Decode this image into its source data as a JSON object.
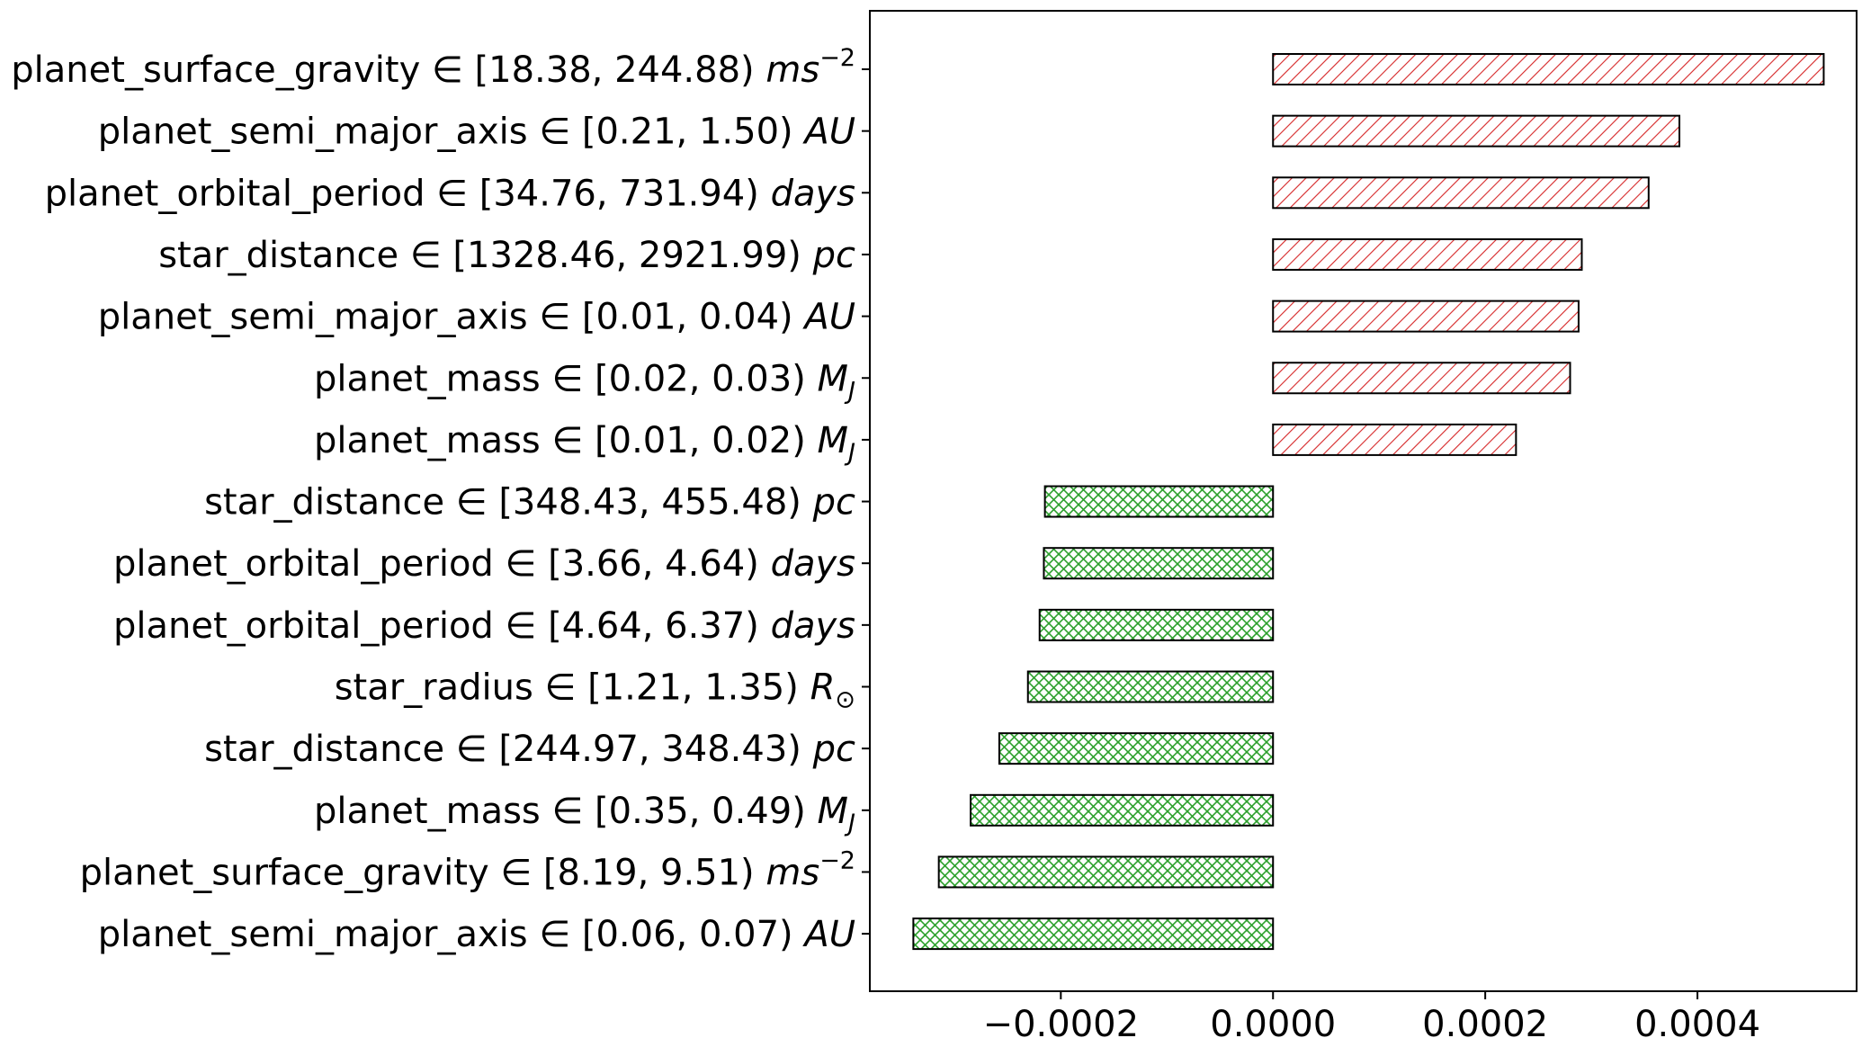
{
  "chart_data": {
    "type": "bar",
    "orientation": "horizontal",
    "title": "",
    "xlabel": "",
    "ylabel": "",
    "xlim": [
      -0.00038,
      0.00055
    ],
    "grid": false,
    "x_ticks": [
      {
        "value": -0.0002,
        "label": "−0.0002"
      },
      {
        "value": 0.0,
        "label": "0.0000"
      },
      {
        "value": 0.0002,
        "label": "0.0002"
      },
      {
        "value": 0.0004,
        "label": "0.0004"
      }
    ],
    "colors": {
      "positive": "#d62728",
      "negative": "#2ca02c"
    },
    "bars": [
      {
        "feature": "planet_surface_gravity",
        "range": "[18.38, 244.88)",
        "unit_base": "ms",
        "unit_sup": "−2",
        "unit_sub": "",
        "value": 0.000519
      },
      {
        "feature": "planet_semi_major_axis",
        "range": "[0.21, 1.50)",
        "unit_base": "AU",
        "unit_sup": "",
        "unit_sub": "",
        "value": 0.000383
      },
      {
        "feature": "planet_orbital_period",
        "range": "[34.76, 731.94)",
        "unit_base": "days",
        "unit_sup": "",
        "unit_sub": "",
        "value": 0.000354
      },
      {
        "feature": "star_distance",
        "range": "[1328.46, 2921.99)",
        "unit_base": "pc",
        "unit_sup": "",
        "unit_sub": "",
        "value": 0.000291
      },
      {
        "feature": "planet_semi_major_axis",
        "range": "[0.01, 0.04)",
        "unit_base": "AU",
        "unit_sup": "",
        "unit_sub": "",
        "value": 0.000288
      },
      {
        "feature": "planet_mass",
        "range": "[0.02, 0.03)",
        "unit_base": "M",
        "unit_sup": "",
        "unit_sub": "J",
        "value": 0.00028
      },
      {
        "feature": "planet_mass",
        "range": "[0.01, 0.02)",
        "unit_base": "M",
        "unit_sup": "",
        "unit_sub": "J",
        "value": 0.000229
      },
      {
        "feature": "star_distance",
        "range": "[348.43, 455.48)",
        "unit_base": "pc",
        "unit_sup": "",
        "unit_sub": "",
        "value": -0.000215
      },
      {
        "feature": "planet_orbital_period",
        "range": "[3.66, 4.64)",
        "unit_base": "days",
        "unit_sup": "",
        "unit_sub": "",
        "value": -0.000216
      },
      {
        "feature": "planet_orbital_period",
        "range": "[4.64, 6.37)",
        "unit_base": "days",
        "unit_sup": "",
        "unit_sub": "",
        "value": -0.00022
      },
      {
        "feature": "star_radius",
        "range": "[1.21, 1.35)",
        "unit_base": "R",
        "unit_sup": "",
        "unit_sub": "⊙",
        "value": -0.000231
      },
      {
        "feature": "star_distance",
        "range": "[244.97, 348.43)",
        "unit_base": "pc",
        "unit_sup": "",
        "unit_sub": "",
        "value": -0.000258
      },
      {
        "feature": "planet_mass",
        "range": "[0.35, 0.49)",
        "unit_base": "M",
        "unit_sup": "",
        "unit_sub": "J",
        "value": -0.000285
      },
      {
        "feature": "planet_surface_gravity",
        "range": "[8.19, 9.51)",
        "unit_base": "ms",
        "unit_sup": "−2",
        "unit_sub": "",
        "value": -0.000315
      },
      {
        "feature": "planet_semi_major_axis",
        "range": "[0.06, 0.07)",
        "unit_base": "AU",
        "unit_sup": "",
        "unit_sub": "",
        "value": -0.000339
      }
    ]
  }
}
